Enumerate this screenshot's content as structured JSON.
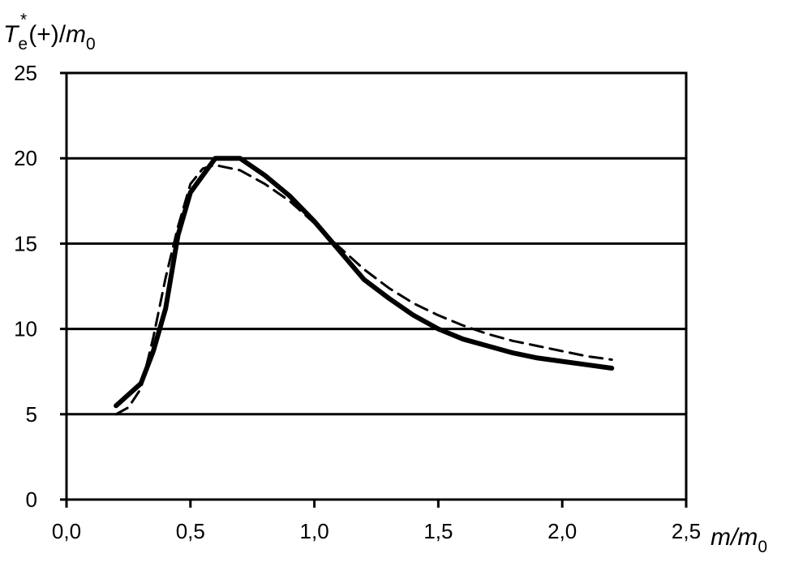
{
  "chart_data": {
    "type": "line",
    "title": "",
    "ylabel": {
      "main": "T",
      "sub": "e",
      "sup": "*",
      "rest": "(+)/",
      "denom_main": "m",
      "denom_sub": "0"
    },
    "xlabel": {
      "main": "m/m",
      "sub": "0"
    },
    "xlim": [
      0,
      2.5
    ],
    "ylim": [
      0,
      25
    ],
    "x_ticks": [
      "0,0",
      "0,5",
      "1,0",
      "1,5",
      "2,0",
      "2,5"
    ],
    "x_tick_values": [
      0,
      0.5,
      1.0,
      1.5,
      2.0,
      2.5
    ],
    "y_ticks": [
      "0",
      "5",
      "10",
      "15",
      "20",
      "25"
    ],
    "y_tick_values": [
      0,
      5,
      10,
      15,
      20,
      25
    ],
    "grid": "horizontal",
    "series": [
      {
        "style": "solid",
        "color": "#000000",
        "x": [
          0.2,
          0.3,
          0.35,
          0.4,
          0.45,
          0.5,
          0.6,
          0.7,
          0.8,
          0.9,
          1.0,
          1.1,
          1.2,
          1.3,
          1.4,
          1.5,
          1.6,
          1.7,
          1.8,
          1.9,
          2.0,
          2.1,
          2.2
        ],
        "y": [
          5.5,
          6.8,
          8.7,
          11.2,
          15.5,
          18.0,
          20.0,
          20.0,
          19.0,
          17.8,
          16.3,
          14.6,
          12.9,
          11.8,
          10.8,
          10.0,
          9.4,
          9.0,
          8.6,
          8.3,
          8.1,
          7.9,
          7.7
        ]
      },
      {
        "style": "dashed",
        "color": "#000000",
        "x": [
          0.2,
          0.25,
          0.3,
          0.35,
          0.4,
          0.45,
          0.5,
          0.55,
          0.6,
          0.7,
          0.8,
          0.9,
          1.0,
          1.1,
          1.2,
          1.3,
          1.4,
          1.5,
          1.6,
          1.7,
          1.8,
          1.9,
          2.0,
          2.1,
          2.2
        ],
        "y": [
          5.0,
          5.4,
          6.5,
          9.5,
          13.0,
          16.0,
          18.5,
          19.4,
          19.6,
          19.3,
          18.5,
          17.5,
          16.2,
          14.8,
          13.5,
          12.4,
          11.5,
          10.8,
          10.2,
          9.7,
          9.3,
          9.0,
          8.7,
          8.4,
          8.2
        ]
      }
    ]
  }
}
